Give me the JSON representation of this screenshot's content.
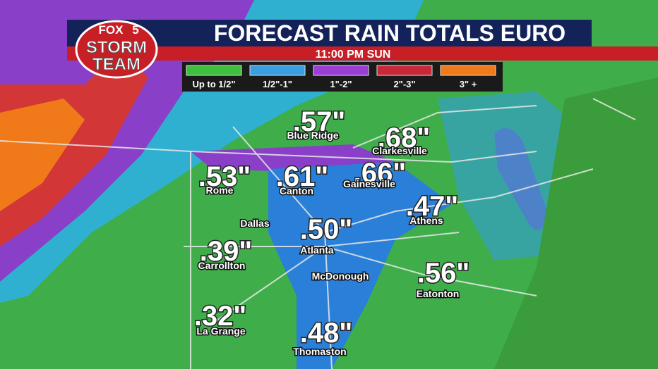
{
  "header": {
    "logo": {
      "line1": "FOX",
      "line2": "5",
      "line3": "STORM",
      "line4": "TEAM"
    },
    "title": "FORECAST RAIN TOTALS EURO",
    "time": "11:00 PM SUN"
  },
  "legend": [
    {
      "label": "Up to 1/2\"",
      "color": "#3fbf3f"
    },
    {
      "label": "1/2\"-1\"",
      "color": "#3a9fe0"
    },
    {
      "label": "1\"-2\"",
      "color": "#9a3fd6"
    },
    {
      "label": "2\"-3\"",
      "color": "#c8283a"
    },
    {
      "label": "3\" +",
      "color": "#f07a1a"
    }
  ],
  "cities": [
    {
      "name": "Blue Ridge",
      "total": ".57\""
    },
    {
      "name": "Clarkesville",
      "total": ".68\""
    },
    {
      "name": "Rome",
      "total": ".53\""
    },
    {
      "name": "Canton",
      "total": ".61\""
    },
    {
      "name": "Gainesville",
      "total": ".66\""
    },
    {
      "name": "Athens",
      "total": ".47\""
    },
    {
      "name": "Dallas"
    },
    {
      "name": "Atlanta",
      "total": ".50\""
    },
    {
      "name": "Carrollton",
      "total": ".39\""
    },
    {
      "name": "McDonough"
    },
    {
      "name": "Eatonton",
      "total": ".56\""
    },
    {
      "name": "La Grange",
      "total": ".32\""
    },
    {
      "name": "Thomaston",
      "total": ".48\""
    }
  ]
}
